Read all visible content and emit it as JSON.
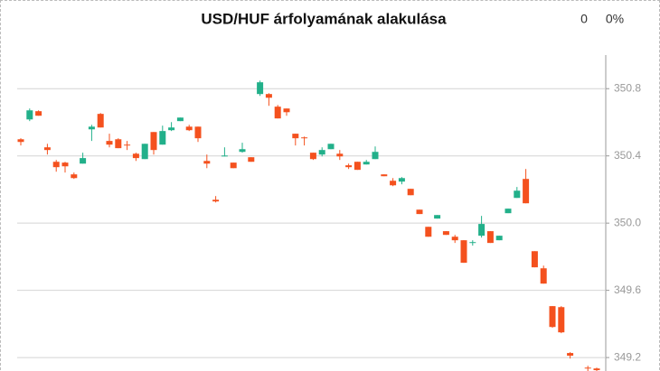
{
  "chart_data": {
    "type": "candlestick",
    "title": "USD/HUF árfolyamának alakulása",
    "header_stats": [
      "0",
      "0%"
    ],
    "up_color": "#22b08a",
    "down_color": "#f4511e",
    "grid": true,
    "ylim": [
      349.12,
      351.0
    ],
    "yticks": [
      {
        "value": 349.2,
        "label": "349.2"
      },
      349.6,
      {
        "value": 350.0,
        "label": "350.0"
      },
      350.4,
      350.8
    ],
    "open": [
      350.499,
      350.617,
      350.666,
      350.451,
      350.365,
      350.36,
      350.29,
      350.354,
      350.558,
      350.65,
      350.489,
      350.499,
      350.467,
      350.413,
      350.381,
      350.542,
      350.467,
      350.553,
      350.607,
      350.574,
      350.574,
      350.37,
      350.139,
      350.397,
      350.36,
      350.424,
      350.392,
      350.768,
      350.768,
      350.693,
      350.682,
      350.532,
      350.51,
      350.419,
      350.408,
      350.44,
      350.413,
      350.344,
      350.365,
      350.349,
      350.381,
      350.29,
      350.252,
      350.247,
      350.204,
      350.08,
      349.978,
      350.027,
      349.952,
      349.919,
      349.898,
      349.882,
      349.925,
      349.952,
      349.898,
      350.059,
      350.15,
      350.263,
      349.833,
      349.731,
      349.506,
      349.5,
      349.227,
      null,
      349.14,
      349.135
    ],
    "high": [
      350.505,
      350.682,
      350.671,
      350.472,
      350.376,
      350.365,
      350.301,
      350.419,
      350.585,
      350.655,
      350.532,
      350.505,
      350.489,
      350.419,
      350.472,
      350.542,
      350.58,
      350.601,
      350.628,
      350.585,
      350.574,
      350.408,
      350.161,
      350.451,
      350.36,
      350.478,
      350.392,
      350.848,
      350.773,
      350.703,
      350.682,
      350.532,
      350.515,
      350.419,
      350.451,
      350.472,
      350.435,
      350.354,
      350.365,
      350.376,
      350.456,
      350.29,
      350.268,
      350.274,
      350.204,
      350.08,
      349.978,
      350.048,
      349.952,
      349.93,
      349.898,
      349.898,
      350.043,
      349.952,
      349.925,
      350.086,
      350.215,
      350.322,
      349.833,
      349.747,
      349.506,
      349.506,
      349.232,
      null,
      349.151,
      349.14
    ],
    "low": [
      350.462,
      350.607,
      350.639,
      350.408,
      350.306,
      350.301,
      350.263,
      350.354,
      350.489,
      350.569,
      350.451,
      350.446,
      350.435,
      350.37,
      350.381,
      350.408,
      350.467,
      350.548,
      350.607,
      350.548,
      350.483,
      350.327,
      350.123,
      350.397,
      350.327,
      350.419,
      350.365,
      350.757,
      350.698,
      350.623,
      350.639,
      350.462,
      350.462,
      350.376,
      350.397,
      350.44,
      350.376,
      350.322,
      350.317,
      350.349,
      350.381,
      350.279,
      350.22,
      350.231,
      350.166,
      350.054,
      349.919,
      350.027,
      349.93,
      349.882,
      349.764,
      349.866,
      349.914,
      349.882,
      349.898,
      350.059,
      350.15,
      350.118,
      349.737,
      349.64,
      349.377,
      349.345,
      349.194,
      null,
      349.119,
      349.119
    ],
    "close": [
      350.483,
      350.671,
      350.639,
      350.435,
      350.333,
      350.338,
      350.268,
      350.387,
      350.574,
      350.569,
      350.467,
      350.446,
      350.462,
      350.387,
      350.472,
      350.435,
      350.548,
      350.569,
      350.628,
      350.553,
      350.505,
      350.354,
      350.129,
      350.402,
      350.327,
      350.44,
      350.365,
      350.838,
      350.746,
      350.623,
      350.66,
      350.505,
      350.505,
      350.381,
      350.435,
      350.472,
      350.397,
      350.333,
      350.317,
      350.365,
      350.424,
      350.279,
      350.225,
      350.268,
      350.166,
      350.054,
      349.919,
      350.048,
      349.93,
      349.898,
      349.764,
      349.887,
      349.995,
      349.882,
      349.925,
      350.086,
      350.193,
      350.118,
      349.737,
      349.64,
      349.382,
      349.35,
      349.211,
      null,
      349.135,
      349.125
    ]
  }
}
